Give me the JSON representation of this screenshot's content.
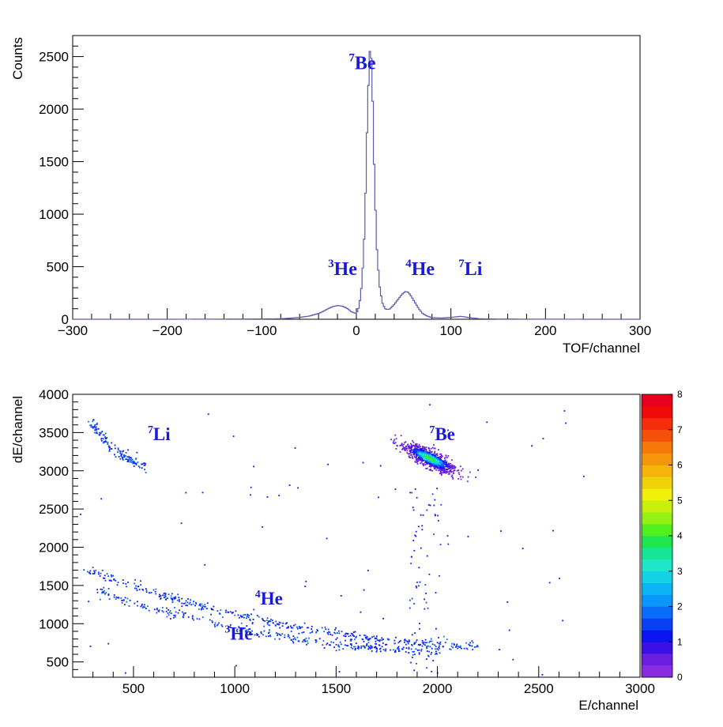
{
  "chart_data": [
    {
      "type": "line",
      "title": "",
      "xlabel": "TOF/channel",
      "ylabel": "Counts",
      "xlim": [
        -300,
        300
      ],
      "ylim": [
        0,
        2700
      ],
      "x_ticks": [
        -300,
        -200,
        -100,
        0,
        100,
        200,
        300
      ],
      "x_tick_labels": [
        "−300",
        "−200",
        "−100",
        "0",
        "100",
        "200",
        "300"
      ],
      "y_ticks": [
        0,
        500,
        1000,
        1500,
        2000,
        2500
      ],
      "y_tick_labels": [
        "0",
        "500",
        "1000",
        "1500",
        "2000",
        "2500"
      ],
      "grid": false,
      "color": "#5a5ab4",
      "series": [
        {
          "x": [
            -300,
            -200,
            -120,
            -100,
            -80,
            -70,
            -60,
            -50,
            -40,
            -35,
            -30,
            -25,
            -20,
            -15,
            -10,
            -5,
            0,
            3,
            6,
            9,
            11,
            13,
            14,
            15,
            16,
            17,
            18,
            20,
            22,
            25,
            28,
            31,
            35,
            40,
            45,
            48,
            52,
            55,
            58,
            62,
            66,
            70,
            75,
            80,
            90,
            100,
            105,
            110,
            115,
            120,
            130,
            150,
            200,
            250,
            300
          ],
          "y": [
            0,
            0,
            2,
            3,
            5,
            10,
            18,
            30,
            55,
            75,
            100,
            120,
            130,
            125,
            105,
            70,
            55,
            120,
            350,
            900,
            1700,
            2300,
            2540,
            2580,
            2450,
            2200,
            1700,
            1100,
            600,
            280,
            140,
            95,
            95,
            140,
            200,
            235,
            265,
            255,
            220,
            160,
            100,
            55,
            30,
            15,
            12,
            18,
            22,
            28,
            22,
            15,
            5,
            2,
            1,
            0,
            0
          ]
        }
      ],
      "annotations": [
        {
          "label": "Be",
          "isotope": "7",
          "x": -8,
          "y": 2380
        },
        {
          "label": "He",
          "isotope": "3",
          "x": -30,
          "y": 420
        },
        {
          "label": "He",
          "isotope": "4",
          "x": 52,
          "y": 420
        },
        {
          "label": "Li",
          "isotope": "7",
          "x": 108,
          "y": 420
        }
      ]
    },
    {
      "type": "heatmap",
      "title": "",
      "xlabel": "E/channel",
      "ylabel": "dE/channel",
      "xlim": [
        200,
        3000
      ],
      "ylim": [
        300,
        4000
      ],
      "x_ticks": [
        500,
        1000,
        1500,
        2000,
        2500,
        3000
      ],
      "x_tick_labels": [
        "500",
        "1000",
        "1500",
        "2000",
        "2500",
        "3000"
      ],
      "y_ticks": [
        500,
        1000,
        1500,
        2000,
        2500,
        3000,
        3500,
        4000
      ],
      "y_tick_labels": [
        "500",
        "1000",
        "1500",
        "2000",
        "2500",
        "3000",
        "3500",
        "4000"
      ],
      "grid": false,
      "colorbar": {
        "min": 0,
        "max": 8,
        "ticks": [
          0,
          1,
          2,
          3,
          4,
          5,
          6,
          7,
          8
        ],
        "tick_labels": [
          "0",
          "1",
          "2",
          "3",
          "4",
          "5",
          "6",
          "7",
          "8"
        ],
        "colors": [
          "#8a2be2",
          "#6a1fe0",
          "#3a10e6",
          "#0a14f0",
          "#0a40f5",
          "#0a6cfa",
          "#0a96fa",
          "#0ab4f5",
          "#14d2e6",
          "#1ee6c8",
          "#14e696",
          "#1ee650",
          "#50f01e",
          "#96f014",
          "#c8f00a",
          "#f0f00a",
          "#f0d20a",
          "#f5b40a",
          "#f5960a",
          "#f5780a",
          "#f5500a",
          "#f52d0a",
          "#f00a0a",
          "#e6001e"
        ]
      },
      "clusters": [
        {
          "name": "7Be",
          "E_center": 1960,
          "dE_center": 3170,
          "sd_along": 110,
          "sd_across": 45,
          "slope": -1.5,
          "count": 900,
          "peak_value": 4
        },
        {
          "name": "7Li",
          "E_start": 280,
          "dE_start": 3680,
          "E_end": 560,
          "dE_end": 3070,
          "count": 140
        },
        {
          "name": "4He",
          "E_start": 260,
          "dE_start": 1720,
          "E_end": 2200,
          "dE_end": 700,
          "count": 420
        },
        {
          "name": "3He",
          "E_start": 300,
          "dE_start": 1450,
          "E_end": 2000,
          "dE_end": 640,
          "count": 320
        },
        {
          "name": "diffuse-vertical",
          "E_min": 1860,
          "E_max": 2020,
          "dE_min": 350,
          "dE_max": 2800,
          "count": 70
        },
        {
          "name": "background",
          "count": 70
        }
      ],
      "annotations": [
        {
          "label": "Li",
          "isotope": "7",
          "x": 570,
          "y": 3400
        },
        {
          "label": "Be",
          "isotope": "7",
          "x": 1960,
          "y": 3400
        },
        {
          "label": "He",
          "isotope": "4",
          "x": 1100,
          "y": 1250
        },
        {
          "label": "He",
          "isotope": "3",
          "x": 950,
          "y": 790
        }
      ]
    }
  ]
}
